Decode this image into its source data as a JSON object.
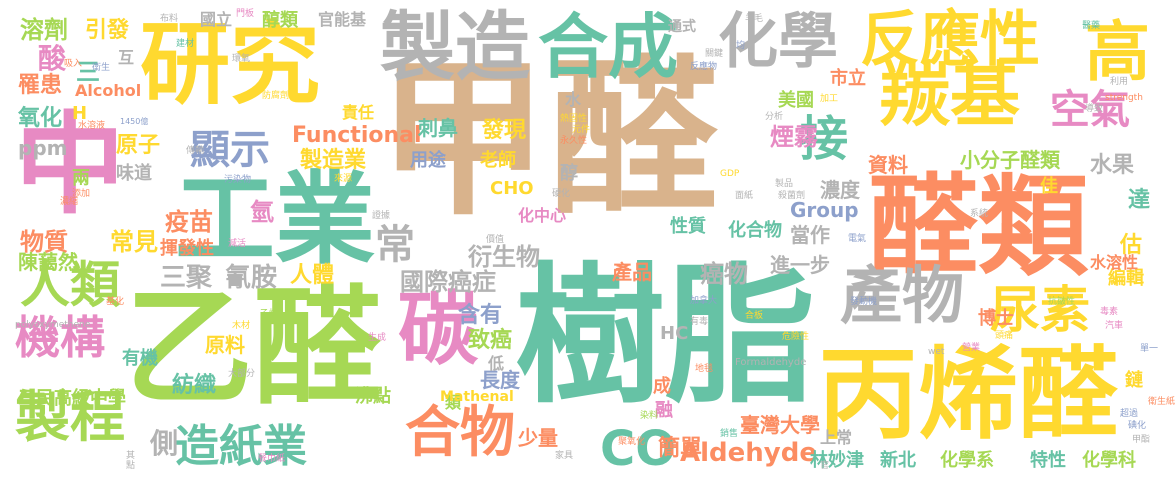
{
  "palette": {
    "tan": "#d9b38c",
    "green": "#66c2a5",
    "orange": "#fc8d62",
    "pink": "#e78ac3",
    "purple": "#8da0cb",
    "lime": "#a6d854",
    "yellow": "#ffd92f",
    "gray": "#b3b3b3"
  },
  "words": [
    {
      "text": "甲醛",
      "c": "tan"
    },
    {
      "text": "樹脂",
      "c": "green"
    },
    {
      "text": "乙醛",
      "c": "lime"
    },
    {
      "text": "醛類",
      "c": "orange"
    },
    {
      "text": "工業",
      "c": "green"
    },
    {
      "text": "中",
      "c": "pink"
    },
    {
      "text": "丙烯醛",
      "c": "yellow"
    },
    {
      "text": "研究",
      "c": "yellow"
    },
    {
      "text": "製造",
      "c": "gray"
    },
    {
      "text": "合成",
      "c": "green"
    },
    {
      "text": "羰基",
      "c": "yellow"
    },
    {
      "text": "反應性",
      "c": "yellow"
    },
    {
      "text": "高",
      "c": "yellow"
    },
    {
      "text": "化學",
      "c": "gray"
    },
    {
      "text": "碳",
      "c": "pink"
    },
    {
      "text": "產物",
      "c": "gray"
    },
    {
      "text": "製程",
      "c": "lime"
    },
    {
      "text": "合物",
      "c": "orange"
    },
    {
      "text": "機構",
      "c": "pink"
    },
    {
      "text": "人類",
      "c": "lime"
    },
    {
      "text": "尿素",
      "c": "yellow"
    },
    {
      "text": "接",
      "c": "green"
    },
    {
      "text": "空氣",
      "c": "pink"
    },
    {
      "text": "顯示",
      "c": "purple"
    },
    {
      "text": "造紙業",
      "c": "green"
    },
    {
      "text": "CO",
      "c": "green"
    },
    {
      "text": "常",
      "c": "gray"
    },
    {
      "text": "三聚",
      "c": "gray"
    },
    {
      "text": "氰胺",
      "c": "gray"
    },
    {
      "text": "國際",
      "c": "gray"
    },
    {
      "text": "癌症",
      "c": "gray"
    },
    {
      "text": "衍生物",
      "c": "gray"
    },
    {
      "text": "製造業",
      "c": "yellow"
    },
    {
      "text": "Functional",
      "c": "orange"
    },
    {
      "text": "發現",
      "c": "yellow"
    },
    {
      "text": "刺鼻",
      "c": "green"
    },
    {
      "text": "用途",
      "c": "purple"
    },
    {
      "text": "老師",
      "c": "yellow"
    },
    {
      "text": "醇",
      "c": "gray"
    },
    {
      "text": "CHO",
      "c": "yellow"
    },
    {
      "text": "Aldehyde",
      "c": "orange"
    },
    {
      "text": "臺灣大學",
      "c": "orange"
    },
    {
      "text": "煙霧",
      "c": "pink"
    },
    {
      "text": "小分子醛類",
      "c": "lime"
    },
    {
      "text": "資料",
      "c": "orange"
    },
    {
      "text": "濃度",
      "c": "gray"
    },
    {
      "text": "水果",
      "c": "gray"
    },
    {
      "text": "Group",
      "c": "purple"
    },
    {
      "text": "當作",
      "c": "gray"
    },
    {
      "text": "癌物",
      "c": "gray"
    },
    {
      "text": "進一步",
      "c": "gray"
    },
    {
      "text": "產品",
      "c": "orange"
    },
    {
      "text": "致癌",
      "c": "lime"
    },
    {
      "text": "含有",
      "c": "purple"
    },
    {
      "text": "長度",
      "c": "purple"
    },
    {
      "text": "簡單",
      "c": "orange"
    },
    {
      "text": "少量",
      "c": "orange"
    },
    {
      "text": "人體",
      "c": "yellow"
    },
    {
      "text": "疫苗",
      "c": "orange"
    },
    {
      "text": "氫",
      "c": "pink"
    },
    {
      "text": "常見",
      "c": "yellow"
    },
    {
      "text": "揮發性",
      "c": "orange"
    },
    {
      "text": "物質",
      "c": "orange"
    },
    {
      "text": "陳藹然",
      "c": "lime"
    },
    {
      "text": "原料",
      "c": "yellow"
    },
    {
      "text": "紡織",
      "c": "green"
    },
    {
      "text": "有機",
      "c": "green"
    },
    {
      "text": "三民高級中學",
      "c": "lime"
    },
    {
      "text": "側",
      "c": "gray"
    },
    {
      "text": "溶劑",
      "c": "lime"
    },
    {
      "text": "酸",
      "c": "pink"
    },
    {
      "text": "引發",
      "c": "yellow"
    },
    {
      "text": "三",
      "c": "green"
    },
    {
      "text": "互",
      "c": "gray"
    },
    {
      "text": "罹患",
      "c": "orange"
    },
    {
      "text": "Alcohol",
      "c": "orange"
    },
    {
      "text": "氧化",
      "c": "green"
    },
    {
      "text": "H",
      "c": "yellow"
    },
    {
      "text": "ppm",
      "c": "gray"
    },
    {
      "text": "原子",
      "c": "yellow"
    },
    {
      "text": "味道",
      "c": "gray"
    },
    {
      "text": "兩",
      "c": "lime"
    },
    {
      "text": "國立",
      "c": "gray"
    },
    {
      "text": "醇類",
      "c": "lime"
    },
    {
      "text": "官能基",
      "c": "gray"
    },
    {
      "text": "責任",
      "c": "yellow"
    },
    {
      "text": "美國",
      "c": "lime"
    },
    {
      "text": "市立",
      "c": "orange"
    },
    {
      "text": "佳",
      "c": "yellow"
    },
    {
      "text": "達",
      "c": "green"
    },
    {
      "text": "估",
      "c": "yellow"
    },
    {
      "text": "編輯",
      "c": "yellow"
    },
    {
      "text": "水溶性",
      "c": "orange"
    },
    {
      "text": "博士",
      "c": "orange"
    },
    {
      "text": "鏈",
      "c": "yellow"
    },
    {
      "text": "上常",
      "c": "gray"
    },
    {
      "text": "林妙津",
      "c": "green"
    },
    {
      "text": "新北",
      "c": "green"
    },
    {
      "text": "化學系",
      "c": "lime"
    },
    {
      "text": "特性",
      "c": "green"
    },
    {
      "text": "化學科",
      "c": "lime"
    },
    {
      "text": "化中心",
      "c": "pink"
    },
    {
      "text": "性質",
      "c": "green"
    },
    {
      "text": "化合物",
      "c": "green"
    },
    {
      "text": "HC",
      "c": "gray"
    },
    {
      "text": "成",
      "c": "orange"
    },
    {
      "text": "融",
      "c": "pink"
    },
    {
      "text": "水",
      "c": "gray"
    },
    {
      "text": "沸點",
      "c": "lime"
    },
    {
      "text": "類",
      "c": "lime"
    },
    {
      "text": "Mathenal",
      "c": "yellow"
    },
    {
      "text": "低",
      "c": "gray"
    },
    {
      "text": "通式",
      "c": "gray"
    },
    {
      "text": "Formaldehyde",
      "c": "gray"
    },
    {
      "text": "polyoxymethene",
      "c": "gray"
    },
    {
      "text": "1450億",
      "c": "purple"
    },
    {
      "text": "布料",
      "c": "gray"
    },
    {
      "text": "門板",
      "c": "pink"
    },
    {
      "text": "建材",
      "c": "green"
    },
    {
      "text": "吸入",
      "c": "orange"
    },
    {
      "text": "衛生",
      "c": "purple"
    },
    {
      "text": "水溶液",
      "c": "orange"
    },
    {
      "text": "防腐劑",
      "c": "yellow"
    },
    {
      "text": "醫藥",
      "c": "green"
    },
    {
      "text": "strength",
      "c": "orange"
    },
    {
      "text": "利用",
      "c": "gray"
    },
    {
      "text": "導致",
      "c": "gray"
    },
    {
      "text": "加工",
      "c": "yellow"
    },
    {
      "text": "反應物",
      "c": "purple"
    },
    {
      "text": "分析",
      "c": "gray"
    },
    {
      "text": "GDP",
      "c": "yellow"
    },
    {
      "text": "面紙",
      "c": "gray"
    },
    {
      "text": "殺菌劑",
      "c": "gray"
    },
    {
      "text": "系統",
      "c": "gray"
    },
    {
      "text": "電氣",
      "c": "purple"
    },
    {
      "text": "抗皺性",
      "c": "lime"
    },
    {
      "text": "單一",
      "c": "purple"
    },
    {
      "text": "汽車",
      "c": "pink"
    },
    {
      "text": "毒素",
      "c": "pink"
    },
    {
      "text": "衛生紙",
      "c": "orange"
    },
    {
      "text": "超過",
      "c": "purple"
    },
    {
      "text": "甲酯",
      "c": "gray"
    },
    {
      "text": "危險性",
      "c": "yellow"
    },
    {
      "text": "發動機",
      "c": "purple"
    },
    {
      "text": "合板",
      "c": "yellow"
    },
    {
      "text": "頭痛",
      "c": "yellow"
    },
    {
      "text": "加拿大",
      "c": "purple"
    },
    {
      "text": "有毒",
      "c": "gray"
    },
    {
      "text": "餐巾紙",
      "c": "pink"
    },
    {
      "text": "家具",
      "c": "gray"
    },
    {
      "text": "聚氧化",
      "c": "orange"
    },
    {
      "text": "銷售",
      "c": "green"
    },
    {
      "text": "價值",
      "c": "gray"
    },
    {
      "text": "乙烷",
      "c": "lime"
    },
    {
      "text": "木材",
      "c": "yellow"
    },
    {
      "text": "大部分",
      "c": "gray"
    },
    {
      "text": "基化",
      "c": "orange"
    },
    {
      "text": "減活",
      "c": "pink"
    },
    {
      "text": "添加",
      "c": "orange"
    },
    {
      "text": "濃縮",
      "c": "orange"
    },
    {
      "text": "污染物",
      "c": "purple"
    },
    {
      "text": "證據",
      "c": "gray"
    },
    {
      "text": "傳輸",
      "c": "gray"
    },
    {
      "text": "生成",
      "c": "pink"
    },
    {
      "text": "染料",
      "c": "lime"
    },
    {
      "text": "地毯",
      "c": "orange"
    },
    {
      "text": "wet",
      "c": "gray"
    },
    {
      "text": "營業",
      "c": "pink"
    },
    {
      "text": "熱固性",
      "c": "yellow"
    },
    {
      "text": "永久性",
      "c": "orange"
    },
    {
      "text": "元件",
      "c": "yellow"
    },
    {
      "text": "羊毛",
      "c": "gray"
    },
    {
      "text": "均",
      "c": "purple"
    },
    {
      "text": "關鍵",
      "c": "gray"
    },
    {
      "text": "環氧",
      "c": "gray"
    },
    {
      "text": "來源",
      "c": "yellow"
    },
    {
      "text": "硬化",
      "c": "gray"
    },
    {
      "text": "製品",
      "c": "gray"
    },
    {
      "text": "碘化",
      "c": "purple"
    },
    {
      "text": "其",
      "c": "gray"
    },
    {
      "text": "點",
      "c": "gray"
    },
    {
      "text": "官",
      "c": "gray"
    }
  ]
}
